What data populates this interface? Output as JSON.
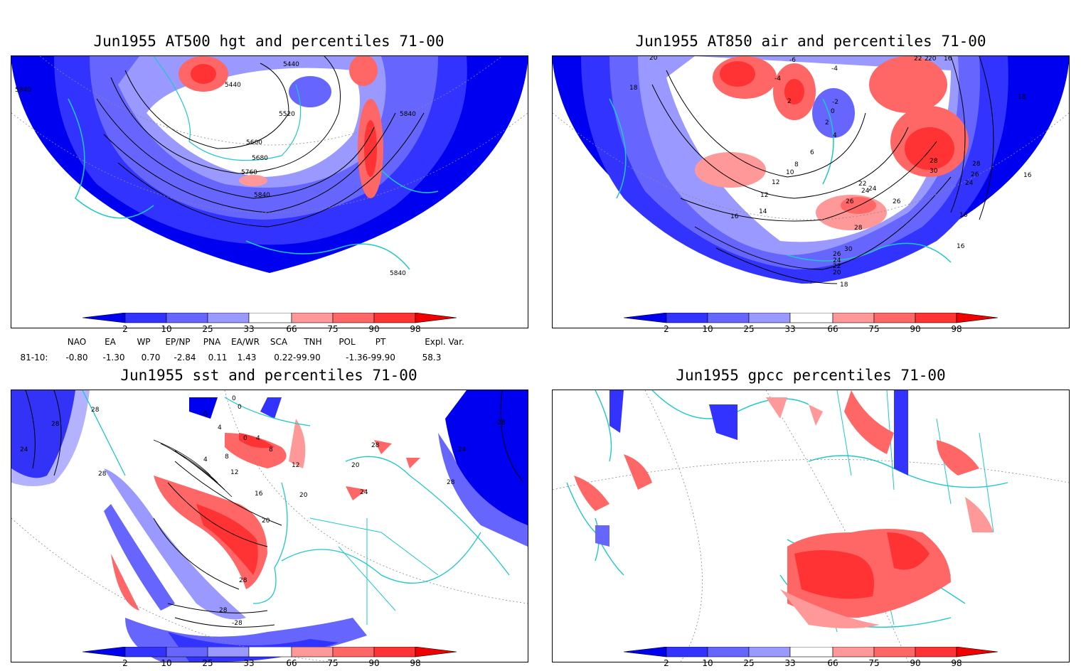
{
  "panels": [
    {
      "id": "hgt",
      "title": "Jun1955 AT500 hgt and percentiles 71-00",
      "contour_labels": [
        "5840",
        "5440",
        "5440",
        "5520",
        "5600",
        "5680",
        "5760",
        "5840",
        "5840",
        "5840"
      ]
    },
    {
      "id": "air",
      "title": "Jun1955 AT850 air and percentiles 71-00",
      "contour_labels": [
        "20",
        "18",
        "-6",
        "-4",
        "-4",
        "2",
        "-2",
        "0",
        "2",
        "4",
        "6",
        "8",
        "10",
        "12",
        "12",
        "14",
        "16",
        "16",
        "18",
        "16",
        "16",
        "24",
        "26",
        "28",
        "28",
        "30",
        "26",
        "24",
        "22",
        "24",
        "26",
        "28",
        "30",
        "26",
        "24",
        "22",
        "20",
        "18",
        "16",
        "22",
        "2",
        "20"
      ]
    },
    {
      "id": "sst",
      "title": "Jun1955 sst and percentiles 71-00",
      "contour_labels": [
        "28",
        "28",
        "24",
        "28",
        "0",
        "0",
        "0",
        "0",
        "4",
        "4",
        "4",
        "8",
        "8",
        "12",
        "12",
        "16",
        "20",
        "20",
        "20",
        "24",
        "28",
        "28",
        "-28",
        "24",
        "28",
        "28",
        "-28"
      ]
    },
    {
      "id": "gpcc",
      "title": "Jun1955 gpcc percentiles 71-00",
      "contour_labels": []
    }
  ],
  "colorbar": {
    "ticks": [
      "2",
      "10",
      "25",
      "33",
      "66",
      "75",
      "90",
      "98"
    ],
    "colors": {
      "lt2": "#0000f0",
      "b2_10": "#3333ff",
      "b10_25": "#6666ff",
      "b25_33": "#9999ff",
      "b33_66": "#ffffff",
      "b66_75": "#ff9999",
      "b75_90": "#ff6666",
      "b90_98": "#ff3333",
      "gt98": "#f00000"
    }
  },
  "indices": {
    "row_label": "81-10:",
    "items": [
      {
        "name": "NAO",
        "value": "-0.80"
      },
      {
        "name": "EA",
        "value": "-1.30"
      },
      {
        "name": "WP",
        "value": "0.70"
      },
      {
        "name": "EP/NP",
        "value": "-2.84"
      },
      {
        "name": "PNA",
        "value": "0.11"
      },
      {
        "name": "EA/WR",
        "value": "1.43"
      },
      {
        "name": "SCA",
        "value": "0.22-99.90"
      },
      {
        "name": "TNH",
        "value": "-1.36-99.90"
      },
      {
        "name": "POL",
        "value": ""
      },
      {
        "name": "PT",
        "value": ""
      },
      {
        "name": "Expl. Var.",
        "value": "58.3"
      }
    ]
  },
  "colors": {
    "coast": "#1ec8c8",
    "contour": "#000000",
    "grid": "#888888"
  }
}
